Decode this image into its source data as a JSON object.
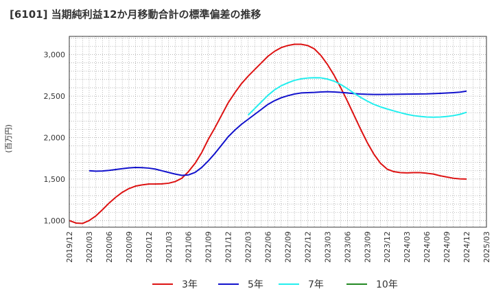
{
  "chart_data": {
    "type": "line",
    "title": "[6101]  当期純利益12か月移動合計の標準偏差の推移",
    "ylabel": "(百万円)",
    "xlabel": "",
    "ylim": [
      920,
      3220
    ],
    "yticks": [
      1000,
      1500,
      2000,
      2500,
      3000
    ],
    "ytick_labels": [
      "1,000",
      "1,500",
      "2,000",
      "2,500",
      "3,000"
    ],
    "xticks": [
      "2019/12",
      "2020/03",
      "2020/06",
      "2020/09",
      "2020/12",
      "2021/03",
      "2021/06",
      "2021/09",
      "2021/12",
      "2022/03",
      "2022/06",
      "2022/09",
      "2022/12",
      "2023/03",
      "2023/06",
      "2023/09",
      "2023/12",
      "2024/03",
      "2024/06",
      "2024/09",
      "2024/12",
      "2025/03"
    ],
    "grid": true,
    "legend_position": "bottom",
    "series": [
      {
        "name": "3年",
        "color": "#dd1111",
        "x": [
          "2019/12",
          "2020/01",
          "2020/02",
          "2020/03",
          "2020/04",
          "2020/05",
          "2020/06",
          "2020/07",
          "2020/08",
          "2020/09",
          "2020/10",
          "2020/11",
          "2020/12",
          "2021/01",
          "2021/02",
          "2021/03",
          "2021/04",
          "2021/05",
          "2021/06",
          "2021/07",
          "2021/08",
          "2021/09",
          "2021/10",
          "2021/11",
          "2021/12",
          "2022/01",
          "2022/02",
          "2022/03",
          "2022/04",
          "2022/05",
          "2022/06",
          "2022/07",
          "2022/08",
          "2022/09",
          "2022/10",
          "2022/11",
          "2022/12",
          "2023/01",
          "2023/02",
          "2023/03",
          "2023/04",
          "2023/05",
          "2023/06",
          "2023/07",
          "2023/08",
          "2023/09",
          "2023/10",
          "2023/11",
          "2023/12",
          "2024/01",
          "2024/02",
          "2024/03",
          "2024/04",
          "2024/05",
          "2024/06",
          "2024/07",
          "2024/08",
          "2024/09",
          "2024/10",
          "2024/11",
          "2024/12"
        ],
        "values": [
          1000,
          970,
          965,
          1000,
          1055,
          1130,
          1210,
          1280,
          1340,
          1385,
          1415,
          1430,
          1440,
          1440,
          1442,
          1450,
          1470,
          1510,
          1590,
          1690,
          1820,
          1980,
          2120,
          2270,
          2420,
          2540,
          2650,
          2740,
          2820,
          2900,
          2980,
          3040,
          3085,
          3110,
          3125,
          3125,
          3110,
          3070,
          2990,
          2880,
          2750,
          2600,
          2440,
          2270,
          2100,
          1940,
          1800,
          1690,
          1620,
          1590,
          1578,
          1575,
          1578,
          1578,
          1570,
          1560,
          1540,
          1525,
          1510,
          1502,
          1500
        ]
      },
      {
        "name": "5年",
        "color": "#1111cc",
        "x": [
          "2020/03",
          "2020/04",
          "2020/05",
          "2020/06",
          "2020/07",
          "2020/08",
          "2020/09",
          "2020/10",
          "2020/11",
          "2020/12",
          "2021/01",
          "2021/02",
          "2021/03",
          "2021/04",
          "2021/05",
          "2021/06",
          "2021/07",
          "2021/08",
          "2021/09",
          "2021/10",
          "2021/11",
          "2021/12",
          "2022/01",
          "2022/02",
          "2022/03",
          "2022/04",
          "2022/05",
          "2022/06",
          "2022/07",
          "2022/08",
          "2022/09",
          "2022/10",
          "2022/11",
          "2022/12",
          "2023/01",
          "2023/02",
          "2023/03",
          "2023/04",
          "2023/05",
          "2023/06",
          "2023/07",
          "2023/08",
          "2023/09",
          "2023/10",
          "2023/11",
          "2023/12",
          "2024/01",
          "2024/02",
          "2024/03",
          "2024/04",
          "2024/05",
          "2024/06",
          "2024/07",
          "2024/08",
          "2024/09",
          "2024/10",
          "2024/11",
          "2024/12"
        ],
        "values": [
          1600,
          1595,
          1597,
          1605,
          1615,
          1625,
          1635,
          1640,
          1638,
          1632,
          1620,
          1600,
          1580,
          1560,
          1545,
          1550,
          1580,
          1640,
          1720,
          1810,
          1910,
          2010,
          2090,
          2160,
          2220,
          2280,
          2340,
          2400,
          2445,
          2480,
          2505,
          2525,
          2538,
          2542,
          2545,
          2550,
          2553,
          2550,
          2545,
          2538,
          2530,
          2525,
          2522,
          2520,
          2520,
          2521,
          2522,
          2523,
          2524,
          2525,
          2526,
          2527,
          2530,
          2533,
          2537,
          2542,
          2548,
          2560
        ]
      },
      {
        "name": "7年",
        "color": "#22eeee",
        "x": [
          "2022/03",
          "2022/04",
          "2022/05",
          "2022/06",
          "2022/07",
          "2022/08",
          "2022/09",
          "2022/10",
          "2022/11",
          "2022/12",
          "2023/01",
          "2023/02",
          "2023/03",
          "2023/04",
          "2023/05",
          "2023/06",
          "2023/07",
          "2023/08",
          "2023/09",
          "2023/10",
          "2023/11",
          "2023/12",
          "2024/01",
          "2024/02",
          "2024/03",
          "2024/04",
          "2024/05",
          "2024/06",
          "2024/07",
          "2024/08",
          "2024/09",
          "2024/10",
          "2024/11",
          "2024/12"
        ],
        "values": [
          2270,
          2350,
          2430,
          2510,
          2575,
          2625,
          2660,
          2690,
          2708,
          2718,
          2722,
          2720,
          2705,
          2680,
          2640,
          2590,
          2535,
          2485,
          2440,
          2400,
          2370,
          2345,
          2322,
          2300,
          2280,
          2265,
          2255,
          2248,
          2246,
          2248,
          2254,
          2265,
          2280,
          2305
        ]
      },
      {
        "name": "10年",
        "color": "#228822",
        "x": [],
        "values": []
      }
    ]
  }
}
